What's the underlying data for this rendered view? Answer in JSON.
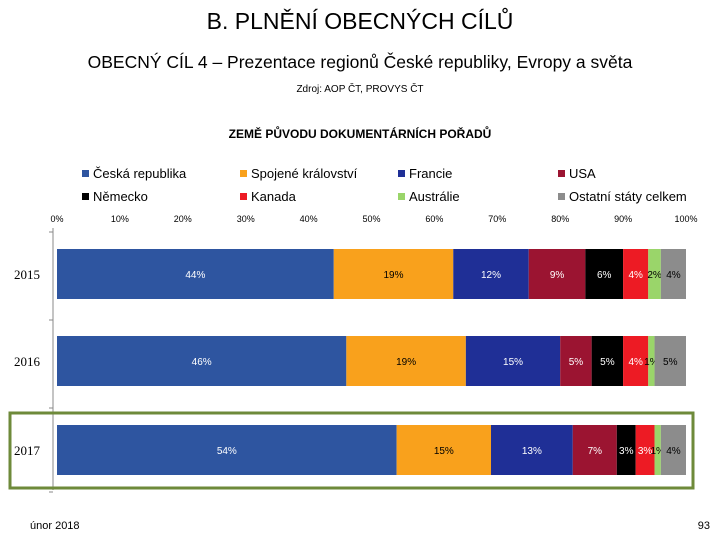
{
  "header": {
    "title": "B. PLNĚNÍ OBECNÝCH CÍLŮ",
    "subtitle": "OBECNÝ CÍL 4 – Prezentace regionů České republiky, Evropy a světa",
    "source": "Zdroj: AOP ČT, PROVYS ČT"
  },
  "footer": {
    "date": "únor 2018",
    "page": "93"
  },
  "chart_data": {
    "type": "bar",
    "orientation": "horizontal",
    "stacked": true,
    "title": "ZEMĚ PŮVODU DOKUMENTÁRNÍCH POŘADŮ",
    "categories": [
      "2015",
      "2016",
      "2017"
    ],
    "highlighted_category": "2017",
    "xlim": [
      0,
      100
    ],
    "xticks": [
      "0%",
      "10%",
      "20%",
      "30%",
      "40%",
      "50%",
      "60%",
      "70%",
      "80%",
      "90%",
      "100%"
    ],
    "legend_position": "top",
    "series": [
      {
        "name": "Česká republika",
        "color": "#2e55a0",
        "values": [
          44,
          46,
          54
        ],
        "labels": [
          "44%",
          "46%",
          "54%"
        ]
      },
      {
        "name": "Spojené království",
        "color": "#f9a11c",
        "values": [
          19,
          19,
          15
        ],
        "labels": [
          "19%",
          "19%",
          "15%"
        ]
      },
      {
        "name": "Francie",
        "color": "#1f2f96",
        "values": [
          12,
          15,
          13
        ],
        "labels": [
          "12%",
          "15%",
          "13%"
        ]
      },
      {
        "name": "USA",
        "color": "#9b1431",
        "values": [
          9,
          5,
          7
        ],
        "labels": [
          "9%",
          "5%",
          "7%"
        ]
      },
      {
        "name": "Německo",
        "color": "#000000",
        "values": [
          6,
          5,
          3
        ],
        "labels": [
          "6%",
          "5%",
          "3%"
        ]
      },
      {
        "name": "Kanada",
        "color": "#ed1b24",
        "values": [
          4,
          4,
          3
        ],
        "labels": [
          "4%",
          "4%",
          "3%"
        ]
      },
      {
        "name": "Austrálie",
        "color": "#9ad56a",
        "values": [
          2,
          1,
          1
        ],
        "labels": [
          "2%",
          "1%",
          "1%"
        ]
      },
      {
        "name": "Ostatní státy celkem",
        "color": "#8c8c8c",
        "values": [
          4,
          5,
          4
        ],
        "labels": [
          "4%",
          "5%",
          "4%"
        ]
      }
    ]
  }
}
